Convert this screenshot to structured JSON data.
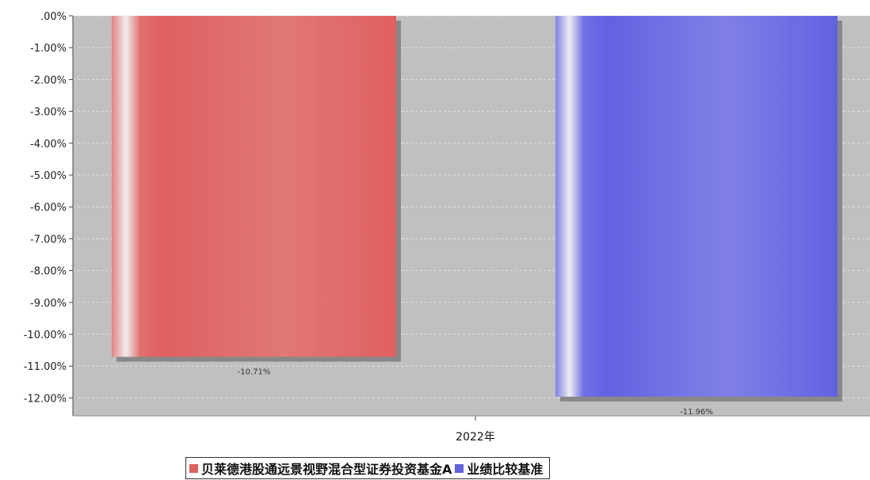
{
  "chart_data": {
    "type": "bar",
    "title": "",
    "categories": [
      "2022年"
    ],
    "series": [
      {
        "name": "贝莱德港股通远景视野混合型证券投资基金A",
        "values": [
          -10.71
        ],
        "color": "#e06060",
        "label": "-10.71%"
      },
      {
        "name": "业绩比较基准",
        "values": [
          -11.96
        ],
        "color": "#6262e2",
        "label": "-11.96%"
      }
    ],
    "ylim": [
      -12.5,
      0
    ],
    "yticks": [
      0,
      -1,
      -2,
      -3,
      -4,
      -5,
      -6,
      -7,
      -8,
      -9,
      -10,
      -11,
      -12
    ],
    "ytick_labels": [
      ".00%",
      "-1.00%",
      "-2.00%",
      "-3.00%",
      "-4.00%",
      "-5.00%",
      "-6.00%",
      "-7.00%",
      "-8.00%",
      "-9.00%",
      "-10.00%",
      "-11.00%",
      "-12.00%"
    ],
    "grid": true,
    "legend_position": "bottom",
    "plot_background": "#c0c0c0"
  }
}
